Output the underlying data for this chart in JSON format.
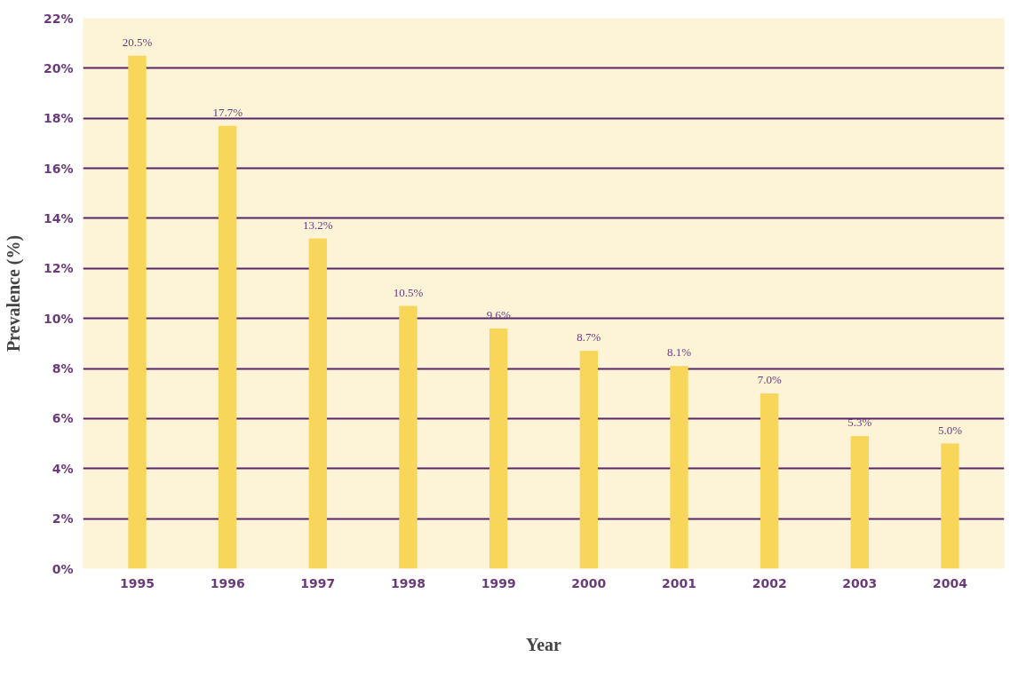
{
  "chart_data": {
    "type": "bar",
    "xlabel": "Year",
    "ylabel": "Prevalence (%)",
    "categories": [
      "1995",
      "1996",
      "1997",
      "1998",
      "1999",
      "2000",
      "2001",
      "2002",
      "2003",
      "2004"
    ],
    "values": [
      20.5,
      17.7,
      13.2,
      10.5,
      9.6,
      8.7,
      8.1,
      7.0,
      5.3,
      5.0
    ],
    "value_labels": [
      "20.5%",
      "17.7%",
      "13.2%",
      "10.5%",
      "9.6%",
      "8.7%",
      "8.1%",
      "7.0%",
      "5.3%",
      "5.0%"
    ],
    "color": "#f7d65a",
    "ylim": [
      0,
      22
    ],
    "yticks": [
      {
        "value": 0,
        "label": "0%"
      },
      {
        "value": 2,
        "label": "2%"
      },
      {
        "value": 4,
        "label": "4%"
      },
      {
        "value": 6,
        "label": "6%"
      },
      {
        "value": 8,
        "label": "8%"
      },
      {
        "value": 10,
        "label": "10%"
      },
      {
        "value": 12,
        "label": "12%"
      },
      {
        "value": 14,
        "label": "14%"
      },
      {
        "value": 16,
        "label": "16%"
      },
      {
        "value": 18,
        "label": "18%"
      },
      {
        "value": 20,
        "label": "20%"
      },
      {
        "value": 22,
        "label": "22%"
      }
    ],
    "grid": "y"
  }
}
